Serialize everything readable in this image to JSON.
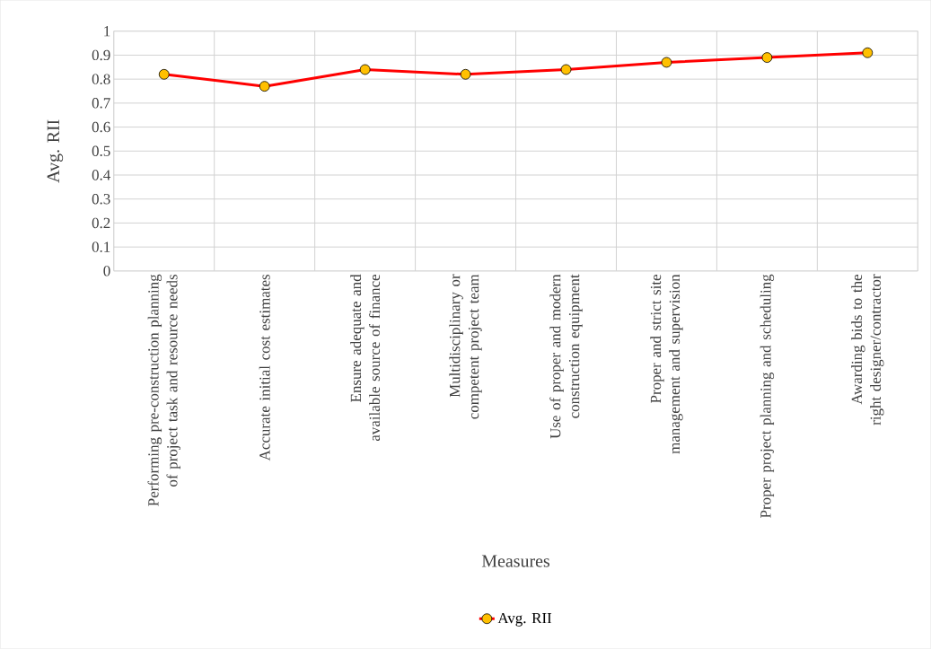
{
  "chart_data": {
    "type": "line",
    "xlabel": "Measures",
    "ylabel": "Avg. RII",
    "categories": [
      "Performing pre-construction planning of project task and resource needs",
      "Accurate initial cost estimates",
      "Ensure adequate and available source of finance",
      "Multidisciplinary or competent project team",
      "Use of proper and modern construction equipment",
      "Proper and strict site management and supervision",
      "Proper project planning and scheduling",
      "Awarding bids to the right designer/contractor"
    ],
    "series": [
      {
        "name": "Avg. RII",
        "color": "#ff0000",
        "values": [
          0.82,
          0.77,
          0.84,
          0.82,
          0.84,
          0.87,
          0.89,
          0.91
        ]
      }
    ],
    "ylim": [
      0,
      1
    ],
    "yticks": [
      0,
      0.1,
      0.2,
      0.3,
      0.4,
      0.5,
      0.6,
      0.7,
      0.8,
      0.9,
      1
    ],
    "grid": true,
    "legend": "bottom",
    "marker": "circle",
    "line_style": "solid"
  }
}
